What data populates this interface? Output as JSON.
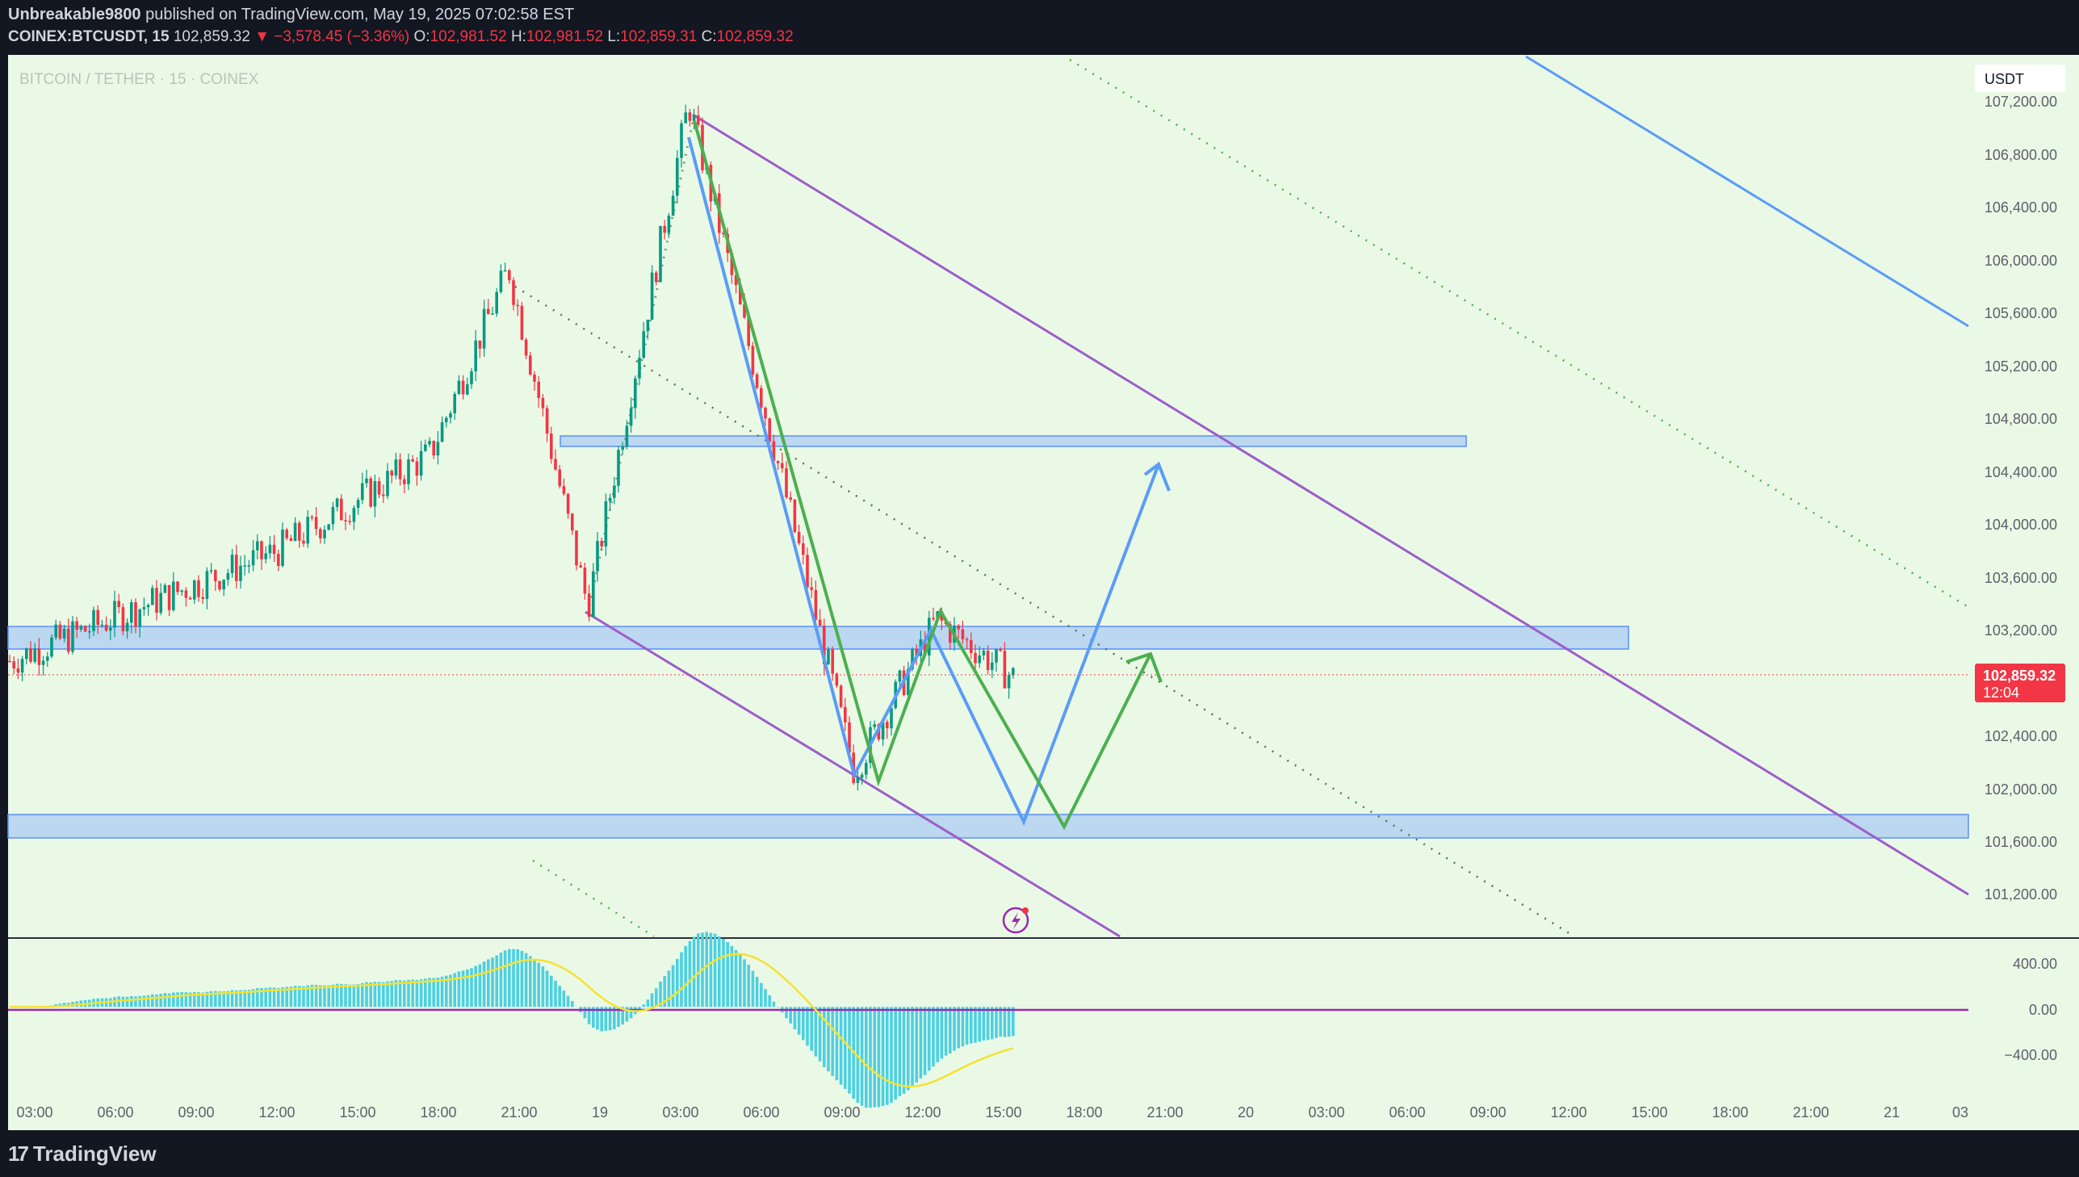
{
  "header": {
    "author": "Unbreakable9800",
    "published_text": "published on TradingView.com, May 19, 2025 07:02:58 EST",
    "symbol": "COINEX:BTCUSDT, 15",
    "last": "102,859.32",
    "change": "▼ −3,578.45 (−3.36%)",
    "o_label": "O:",
    "o_value": "102,981.52",
    "h_label": "H:",
    "h_value": "102,981.52",
    "l_label": "L:",
    "l_value": "102,859.31",
    "c_label": "C:",
    "c_value": "102,859.32"
  },
  "chart_title": "BITCOIN / TETHER · 15 · COINEX",
  "currency_button": "USDT",
  "price_label": {
    "value": "102,859.32",
    "countdown": "12:04"
  },
  "footer": {
    "logo_mark": "17",
    "logo_text": "TradingView"
  },
  "colors": {
    "background": "#eaf9e6",
    "up_candle": "#089981",
    "down_candle": "#f23645",
    "channel": "#9c5fc9",
    "blue_projection": "#5b9cf6",
    "green_projection": "#4caf50",
    "zone_fill": "#bcd7f0",
    "zone_border": "#5b8ff9",
    "macd_line": "#f5e232",
    "histogram": "#4dd0e1",
    "zero_line": "#9c27b0"
  },
  "chart_data": [
    {
      "type": "candlestick",
      "title": "BITCOIN / TETHER · 15 · COINEX",
      "ylabel": "USDT",
      "ylim": [
        101000,
        107400
      ],
      "y_ticks": [
        "107,200.00",
        "106,800.00",
        "106,400.00",
        "106,000.00",
        "105,600.00",
        "105,200.00",
        "104,800.00",
        "104,400.00",
        "104,000.00",
        "103,600.00",
        "103,200.00",
        "102,400.00",
        "102,000.00",
        "101,600.00",
        "101,200.00"
      ],
      "x_ticks": [
        "03:00",
        "06:00",
        "09:00",
        "12:00",
        "15:00",
        "18:00",
        "21:00",
        "19",
        "03:00",
        "06:00",
        "09:00",
        "12:00",
        "15:00",
        "18:00",
        "21:00",
        "20",
        "03:00",
        "06:00",
        "09:00",
        "12:00",
        "15:00",
        "18:00",
        "21:00",
        "21",
        "03"
      ],
      "grid": false,
      "last_price": 102859.32,
      "key_points": [
        {
          "time": "May 18 03:00",
          "price": 103000
        },
        {
          "time": "May 18 12:00",
          "price": 103800
        },
        {
          "time": "May 18 18:00",
          "price": 104500
        },
        {
          "time": "May 18 21:00",
          "price": 105850
        },
        {
          "time": "May 18 23:30",
          "price": 103400
        },
        {
          "time": "May 19 03:00",
          "price": 107050
        },
        {
          "time": "May 19 09:00",
          "price": 102200
        },
        {
          "time": "May 19 11:00",
          "price": 103300
        },
        {
          "time": "May 19 15:00",
          "price": 102859
        }
      ],
      "zones": [
        {
          "from": 104520,
          "to": 104600
        },
        {
          "from": 103020,
          "to": 103200
        },
        {
          "from": 101630,
          "to": 101820
        }
      ]
    },
    {
      "type": "macd",
      "y_ticks": [
        "400.00",
        "0.00",
        "−400.00"
      ],
      "ylim": [
        -600,
        500
      ],
      "zero": 0
    }
  ]
}
